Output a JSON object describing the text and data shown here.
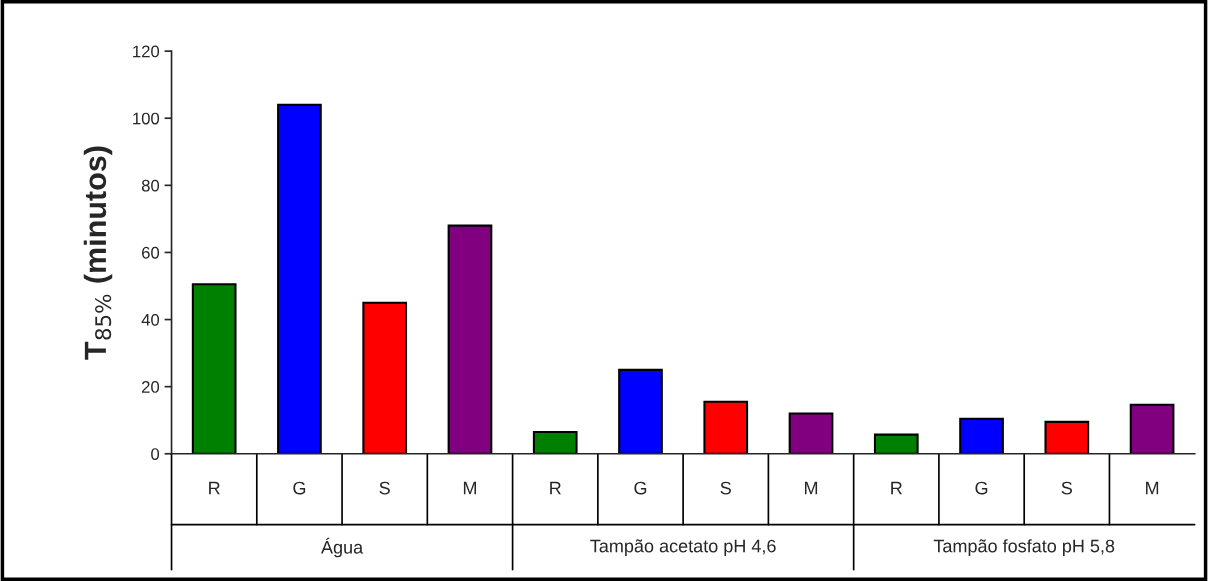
{
  "chart_data": {
    "type": "bar",
    "ylabel": "T$_{85%}$ (minutos)",
    "categories": [
      "R",
      "G",
      "S",
      "M",
      "R",
      "G",
      "S",
      "M",
      "R",
      "G",
      "S",
      "M"
    ],
    "values": [
      50.5,
      104,
      45,
      68,
      6.5,
      25,
      15.5,
      12,
      5.7,
      10.4,
      9.5,
      14.6
    ],
    "colors": [
      "#008000",
      "#0000ff",
      "#ff0000",
      "#800080",
      "#008000",
      "#0000ff",
      "#ff0000",
      "#800080",
      "#008000",
      "#0000ff",
      "#ff0000",
      "#800080"
    ],
    "annotations": [
      "Água",
      "Tampão acetato pH 4,6",
      "Tampão fosfato pH 5,8"
    ],
    "ylim": [
      0,
      120
    ],
    "yticks": [
      0,
      20,
      40,
      60,
      80,
      100,
      120
    ]
  }
}
